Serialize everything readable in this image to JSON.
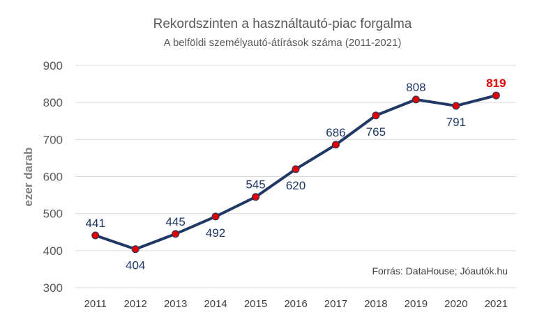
{
  "chart_data": {
    "type": "line",
    "title": "Rekordszinten a használtautó-piac forgalma",
    "subtitle": "A belföldi személyautó-átírások száma (2011-2021)",
    "ylabel": "ezer darab",
    "xlabel": "",
    "ylim": [
      300,
      900
    ],
    "yticks": [
      300,
      400,
      500,
      600,
      700,
      800,
      900
    ],
    "grid": true,
    "categories": [
      "2011",
      "2012",
      "2013",
      "2014",
      "2015",
      "2016",
      "2017",
      "2018",
      "2019",
      "2020",
      "2021"
    ],
    "series": [
      {
        "values": [
          441,
          404,
          445,
          492,
          545,
          620,
          686,
          765,
          808,
          791,
          819
        ]
      }
    ],
    "label_positions": [
      "above",
      "below",
      "above",
      "below",
      "above",
      "below",
      "above",
      "below",
      "above",
      "below",
      "above"
    ],
    "source": "Forrás: DataHouse; Jóautók.hu",
    "colors": {
      "line": "#1f3864",
      "marker": "#e00000",
      "label": "#1f3864",
      "highlight_label": "#e00000",
      "grid": "#d9d9d9"
    }
  }
}
